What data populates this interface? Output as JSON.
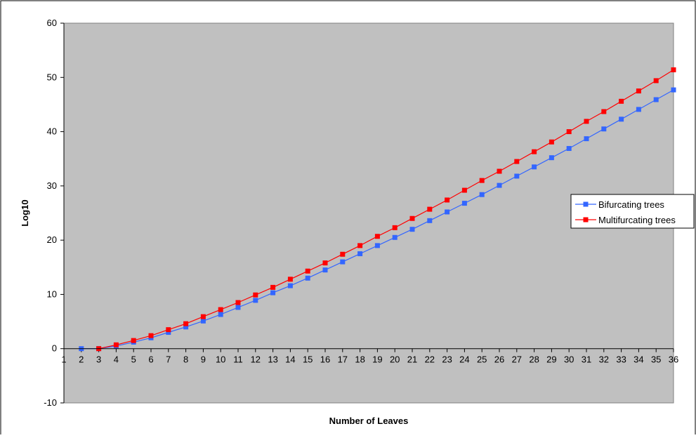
{
  "chart_data": {
    "type": "line",
    "title": "",
    "xlabel": "Number of Leaves",
    "ylabel": "Log10",
    "xlim": [
      1,
      36
    ],
    "ylim": [
      -10,
      60
    ],
    "y_ticks": [
      -10,
      0,
      10,
      20,
      30,
      40,
      50,
      60
    ],
    "x_ticks": [
      1,
      2,
      3,
      4,
      5,
      6,
      7,
      8,
      9,
      10,
      11,
      12,
      13,
      14,
      15,
      16,
      17,
      18,
      19,
      20,
      21,
      22,
      23,
      24,
      25,
      26,
      27,
      28,
      29,
      30,
      31,
      32,
      33,
      34,
      35,
      36
    ],
    "grid": false,
    "plot_background": "#c0c0c0",
    "legend_position": "right",
    "x": [
      2,
      3,
      4,
      5,
      6,
      7,
      8,
      9,
      10,
      11,
      12,
      13,
      14,
      15,
      16,
      17,
      18,
      19,
      20,
      21,
      22,
      23,
      24,
      25,
      26,
      27,
      28,
      29,
      30,
      31,
      32,
      33,
      34,
      35,
      36
    ],
    "series": [
      {
        "name": "Bifurcating trees",
        "color": "#3366ff",
        "marker": "square",
        "values": [
          0,
          0,
          0.5,
          1.2,
          2.0,
          3.0,
          4.0,
          5.1,
          6.3,
          7.6,
          8.9,
          10.3,
          11.6,
          13.0,
          14.5,
          16.0,
          17.5,
          19.0,
          20.5,
          22.0,
          23.6,
          25.2,
          26.8,
          28.4,
          30.1,
          31.8,
          33.5,
          35.2,
          36.9,
          38.7,
          40.5,
          42.3,
          44.1,
          45.9,
          47.7
        ]
      },
      {
        "name": "Multifurcating trees",
        "color": "#ff0000",
        "marker": "square",
        "values": [
          null,
          0,
          0.7,
          1.5,
          2.4,
          3.5,
          4.6,
          5.9,
          7.2,
          8.5,
          9.9,
          11.3,
          12.8,
          14.3,
          15.8,
          17.4,
          19.0,
          20.7,
          22.3,
          24.0,
          25.7,
          27.4,
          29.2,
          31.0,
          32.7,
          34.5,
          36.3,
          38.1,
          40.0,
          41.9,
          43.7,
          45.6,
          47.5,
          49.4,
          51.4
        ]
      }
    ]
  }
}
